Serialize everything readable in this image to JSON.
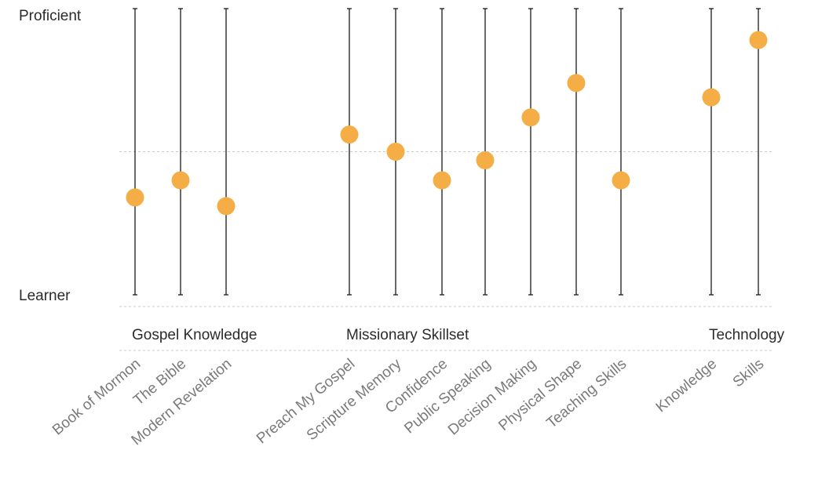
{
  "chart_data": {
    "type": "scatter",
    "y_scale": {
      "min_label": "Learner",
      "max_label": "Proficient",
      "range": [
        0,
        1
      ],
      "midline": 0.5
    },
    "groups": [
      {
        "name": "Gospel Knowledge",
        "categories": [
          "Book of Mormon",
          "The Bible",
          "Modern Revelation"
        ],
        "values": [
          0.34,
          0.4,
          0.31
        ]
      },
      {
        "name": "Missionary Skillset",
        "categories": [
          "Preach My Gospel",
          "Scripture Memory",
          "Confidence",
          "Public Speaking",
          "Decision Making",
          "Physical Shape",
          "Teaching Skills"
        ],
        "values": [
          0.56,
          0.5,
          0.4,
          0.47,
          0.62,
          0.74,
          0.4
        ]
      },
      {
        "name": "Technology",
        "categories": [
          "Knowledge",
          "Skills"
        ],
        "values": [
          0.69,
          0.89
        ]
      }
    ],
    "marker_color": "#F5AD45",
    "grid": false
  }
}
